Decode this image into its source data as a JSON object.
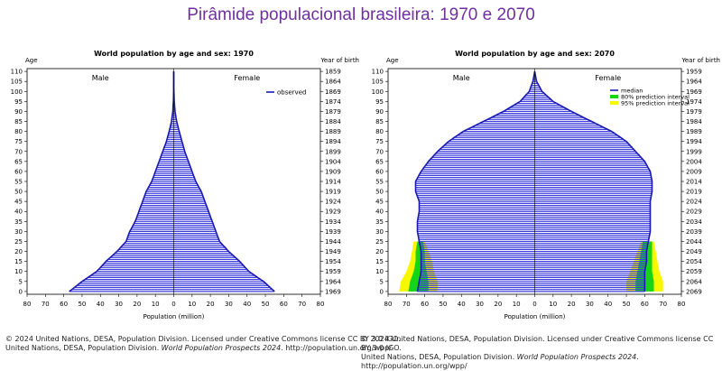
{
  "title": "Pirâmide populacional brasileira: 1970 e 2070",
  "colors": {
    "title": "#7030a0",
    "bars": "#3d3ddb",
    "median": "#1a1ab3",
    "pi80": "#16d416",
    "pi95": "#f7f700"
  },
  "chart_data": [
    {
      "type": "bar",
      "title": "World population by age and sex: 1970",
      "xlabel": "Population (million)",
      "ylabel_left": "Age",
      "ylabel_right": "Year of birth",
      "group_labels": [
        "Male",
        "Female"
      ],
      "legend": {
        "position": "top-right",
        "entries": [
          "observed"
        ]
      },
      "xlim": [
        -80,
        80
      ],
      "x_ticks": [
        80,
        70,
        60,
        50,
        40,
        30,
        20,
        10,
        0,
        10,
        20,
        30,
        40,
        50,
        60,
        70,
        80
      ],
      "age_ticks": [
        0,
        5,
        10,
        15,
        20,
        25,
        30,
        35,
        40,
        45,
        50,
        55,
        60,
        65,
        70,
        75,
        80,
        85,
        90,
        95,
        100,
        105,
        110
      ],
      "year_ticks": [
        1969,
        1964,
        1959,
        1954,
        1949,
        1944,
        1939,
        1934,
        1929,
        1924,
        1919,
        1914,
        1909,
        1904,
        1899,
        1894,
        1889,
        1884,
        1879,
        1874,
        1869,
        1864,
        1859
      ],
      "ages": [
        0,
        5,
        10,
        15,
        20,
        25,
        30,
        35,
        40,
        45,
        50,
        55,
        60,
        65,
        70,
        75,
        80,
        85,
        90,
        95,
        100,
        105,
        110
      ],
      "male": [
        57,
        50,
        42,
        37,
        31,
        26,
        24,
        21,
        19,
        17,
        15,
        12,
        10,
        8,
        6,
        4,
        2.5,
        1.2,
        0.5,
        0.2,
        0.05,
        0.02,
        0
      ],
      "female": [
        55,
        49,
        41,
        36,
        30,
        25,
        23,
        21,
        19,
        17,
        15,
        12,
        10,
        8,
        6,
        4.5,
        3,
        1.6,
        0.7,
        0.3,
        0.1,
        0.03,
        0
      ]
    },
    {
      "type": "bar",
      "title": "World population by age and sex: 2070",
      "xlabel": "Population (million)",
      "ylabel_left": "Age",
      "ylabel_right": "Year of birth",
      "group_labels": [
        "Male",
        "Female"
      ],
      "legend": {
        "position": "top-right",
        "entries": [
          "median",
          "80% prediction interval",
          "95% prediction interval"
        ]
      },
      "xlim": [
        -80,
        80
      ],
      "x_ticks": [
        80,
        70,
        60,
        50,
        40,
        30,
        20,
        10,
        0,
        10,
        20,
        30,
        40,
        50,
        60,
        70,
        80
      ],
      "age_ticks": [
        0,
        5,
        10,
        15,
        20,
        25,
        30,
        35,
        40,
        45,
        50,
        55,
        60,
        65,
        70,
        75,
        80,
        85,
        90,
        95,
        100,
        105,
        110
      ],
      "year_ticks": [
        2069,
        2064,
        2059,
        2054,
        2049,
        2044,
        2039,
        2034,
        2029,
        2024,
        2019,
        2014,
        2009,
        2004,
        1999,
        1994,
        1989,
        1984,
        1979,
        1974,
        1969,
        1964,
        1959
      ],
      "ages": [
        0,
        5,
        10,
        15,
        20,
        25,
        30,
        35,
        40,
        45,
        50,
        55,
        60,
        65,
        70,
        75,
        80,
        85,
        90,
        95,
        100,
        105,
        110
      ],
      "male_median": [
        64,
        63,
        62,
        62,
        62,
        63,
        64,
        64,
        63,
        63,
        65,
        65,
        62,
        58,
        53,
        47,
        39,
        28,
        17,
        8,
        3,
        1,
        0
      ],
      "female_median": [
        60,
        60,
        60,
        61,
        61,
        62,
        63,
        63,
        63,
        63,
        64,
        64,
        63,
        60,
        55,
        50,
        42,
        31,
        20,
        10,
        4,
        1,
        0
      ],
      "male_80": [
        [
          58,
          69
        ],
        [
          58,
          68
        ],
        [
          59,
          66
        ],
        [
          60,
          65
        ],
        [
          60,
          65
        ],
        [
          61,
          64
        ]
      ],
      "female_80": [
        [
          55,
          65
        ],
        [
          55,
          65
        ],
        [
          56,
          64
        ],
        [
          57,
          64
        ],
        [
          58,
          64
        ],
        [
          59,
          64
        ]
      ],
      "male_95": [
        [
          53,
          74
        ],
        [
          53,
          73
        ],
        [
          55,
          70
        ],
        [
          56,
          68
        ],
        [
          58,
          67
        ],
        [
          60,
          66
        ]
      ],
      "female_95": [
        [
          50,
          70
        ],
        [
          50,
          70
        ],
        [
          52,
          68
        ],
        [
          54,
          67
        ],
        [
          56,
          66
        ],
        [
          58,
          65
        ]
      ]
    }
  ],
  "credits": {
    "line1": "© 2024 United Nations, DESA, Population Division. Licensed under Creative Commons license CC BY 3.0 IGO.",
    "line2_prefix": "United Nations, DESA, Population Division.",
    "line2_italic": "World Population Prospects 2024",
    "line2_suffix": ". http://population.un.org/wpp/"
  }
}
